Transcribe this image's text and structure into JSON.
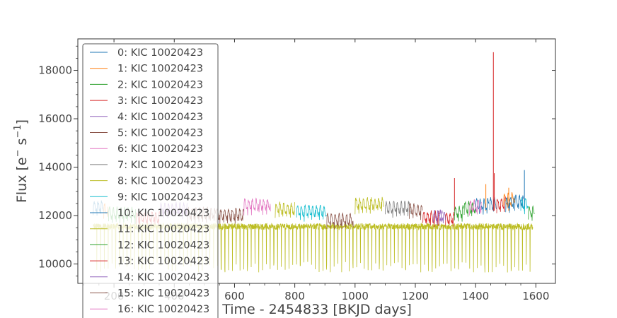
{
  "chart_data": {
    "type": "line",
    "title": "",
    "xlabel": "Time - 2454833 [BKJD days]",
    "ylabel_main": "Flux [e",
    "ylabel_sup1": "−",
    "ylabel_mid": "s",
    "ylabel_sup2": "−1",
    "ylabel_end": "]",
    "xlim": [
      80,
      1665
    ],
    "ylim": [
      9200,
      19300
    ],
    "x_ticks": [
      200,
      400,
      600,
      800,
      1000,
      1200,
      1400,
      1600
    ],
    "x_tick_labels": [
      "200",
      "400",
      "600",
      "800",
      "1000",
      "1200",
      "1400",
      "1600"
    ],
    "y_ticks": [
      10000,
      12000,
      14000,
      16000,
      18000
    ],
    "y_tick_labels": [
      "10000",
      "12000",
      "14000",
      "16000",
      "18000"
    ],
    "legend_position": "top-left",
    "series": [
      {
        "name": "0: KIC 10020423",
        "color": "#1f77b4",
        "segments": [
          [
            131,
            165,
            12380,
            0
          ],
          [
            1447,
            1470,
            12500,
            0
          ],
          [
            1530,
            1560,
            12600,
            0
          ]
        ],
        "spikes": [
          [
            1562,
            13880
          ]
        ]
      },
      {
        "name": "1: KIC 10020423",
        "color": "#ff7f0e",
        "segments": [
          [
            166,
            181,
            12260,
            0
          ],
          [
            1493,
            1530,
            12700,
            0
          ]
        ],
        "spikes": [
          [
            1510,
            13150
          ],
          [
            1434,
            13300
          ]
        ]
      },
      {
        "name": "2: KIC 10020423",
        "color": "#2ca02c",
        "segments": [
          [
            182,
            272,
            12100,
            0
          ],
          [
            1362,
            1400,
            12350,
            0
          ]
        ],
        "spikes": []
      },
      {
        "name": "3: KIC 10020423",
        "color": "#d62728",
        "segments": [
          [
            273,
            352,
            11950,
            0
          ],
          [
            1300,
            1330,
            11900,
            0
          ],
          [
            1470,
            1500,
            12500,
            0
          ]
        ],
        "spikes": [
          [
            1330,
            13550
          ],
          [
            1459,
            18750
          ],
          [
            1462,
            13750
          ]
        ]
      },
      {
        "name": "4: KIC 10020423",
        "color": "#9467bd",
        "segments": [
          [
            353,
            443,
            12300,
            0
          ],
          [
            1280,
            1300,
            12000,
            0
          ]
        ],
        "spikes": []
      },
      {
        "name": "5: KIC 10020423",
        "color": "#8c564b",
        "segments": [
          [
            444,
            538,
            12100,
            0
          ],
          [
            539,
            630,
            12050,
            0
          ]
        ],
        "spikes": []
      },
      {
        "name": "6: KIC 10020423",
        "color": "#e377c2",
        "segments": [
          [
            631,
            720,
            12450,
            0
          ]
        ],
        "spikes": []
      },
      {
        "name": "7: KIC 10020423",
        "color": "#7f7f7f",
        "segments": [
          [
            1100,
            1185,
            12350,
            0
          ]
        ],
        "spikes": []
      },
      {
        "name": "8: KIC 10020423",
        "color": "#bcbd22",
        "segments": [
          [
            735,
            800,
            12300,
            0
          ],
          [
            1000,
            1095,
            12500,
            0
          ]
        ],
        "spikes": []
      },
      {
        "name": "9: KIC 10020423",
        "color": "#17becf",
        "segments": [
          [
            806,
            905,
            12200,
            0
          ],
          [
            1550,
            1575,
            12500,
            0
          ]
        ],
        "spikes": []
      },
      {
        "name": "10: KIC 10020423",
        "color": "#1f77b4",
        "segments": [
          [
            1400,
            1445,
            12450,
            0
          ],
          [
            1500,
            1530,
            12550,
            0
          ]
        ],
        "spikes": []
      },
      {
        "name": "11: KIC 10020423",
        "color": "#bcbd22",
        "segments": [
          [
            131,
            1590,
            11550,
            1
          ]
        ],
        "spikes": []
      },
      {
        "name": "12: KIC 10020423",
        "color": "#2ca02c",
        "segments": [
          [
            1330,
            1360,
            12150,
            0
          ],
          [
            1575,
            1595,
            12150,
            0
          ]
        ],
        "spikes": []
      },
      {
        "name": "13: KIC 10020423",
        "color": "#d62728",
        "segments": [
          [
            1225,
            1280,
            11950,
            0
          ]
        ],
        "spikes": []
      },
      {
        "name": "14: KIC 10020423",
        "color": "#9467bd",
        "segments": [
          [
            1260,
            1290,
            12000,
            0
          ]
        ],
        "spikes": []
      },
      {
        "name": "15: KIC 10020423",
        "color": "#8c564b",
        "segments": [
          [
            1180,
            1225,
            12250,
            0
          ],
          [
            906,
            995,
            11850,
            0
          ]
        ],
        "spikes": []
      },
      {
        "name": "16: KIC 10020423",
        "color": "#e377c2",
        "segments": [
          [
            1380,
            1420,
            12400,
            0
          ]
        ],
        "spikes": []
      }
    ]
  }
}
